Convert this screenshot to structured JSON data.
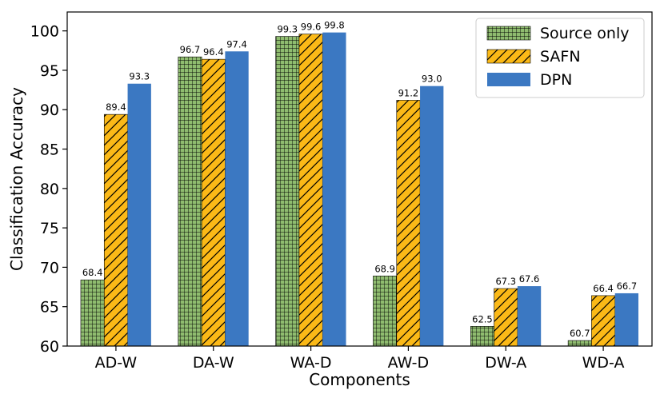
{
  "chart_data": {
    "type": "bar",
    "title": "",
    "xlabel": "Components",
    "ylabel": "Classification Accuracy",
    "ylim": [
      60,
      102.4
    ],
    "yticks": [
      60,
      65,
      70,
      75,
      80,
      85,
      90,
      95,
      100
    ],
    "categories": [
      "AD-W",
      "DA-W",
      "WA-D",
      "AW-D",
      "DW-A",
      "WD-A"
    ],
    "series": [
      {
        "name": "Source only",
        "values": [
          68.4,
          96.7,
          99.3,
          68.9,
          62.5,
          60.7
        ],
        "labels": [
          "68.4",
          "96.7",
          "99.3",
          "68.9",
          "62.5",
          "60.7"
        ],
        "color": "#8fbc6f",
        "hatch": "grid"
      },
      {
        "name": "SAFN",
        "values": [
          89.4,
          96.4,
          99.6,
          91.2,
          67.3,
          66.4
        ],
        "labels": [
          "89.4",
          "96.4",
          "99.6",
          "91.2",
          "67.3",
          "66.4"
        ],
        "color": "#fbb917",
        "hatch": "diagonal"
      },
      {
        "name": "DPN",
        "values": [
          93.3,
          97.4,
          99.8,
          93.0,
          67.6,
          66.7
        ],
        "labels": [
          "93.3",
          "97.4",
          "99.8",
          "93.0",
          "67.6",
          "66.7"
        ],
        "color": "#3b78c2",
        "hatch": "none"
      }
    ],
    "legend_position": "top-right",
    "grid": false
  }
}
